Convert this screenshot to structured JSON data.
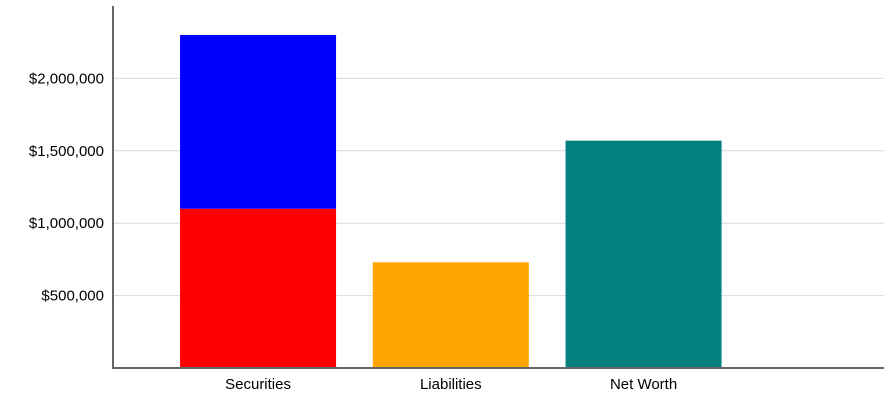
{
  "chart_data": {
    "type": "bar",
    "categories": [
      "Securities",
      "Liabilities",
      "Net Worth"
    ],
    "series": [
      {
        "values": [
          1100000,
          730000,
          1570000
        ],
        "colors": [
          "#ff0000",
          "#ffa500",
          "#008080"
        ]
      },
      {
        "values": [
          1200000,
          0,
          0
        ],
        "colors": [
          "#0000ff",
          "#0000ff",
          "#0000ff"
        ]
      }
    ],
    "stacked": true,
    "y_ticks": [
      500000,
      1000000,
      1500000,
      2000000
    ],
    "y_tick_labels": [
      "$500,000",
      "$1,000,000",
      "$1,500,000",
      "$2,000,000"
    ],
    "ylim": [
      0,
      2500000
    ],
    "grid": true,
    "title": "",
    "xlabel": "",
    "ylabel": ""
  }
}
